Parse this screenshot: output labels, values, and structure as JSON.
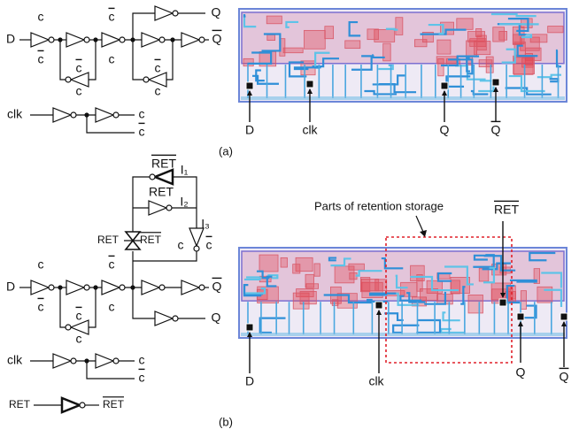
{
  "figure_a": {
    "schematic_labels": [
      {
        "text": "D"
      },
      {
        "text": "c"
      },
      {
        "text": "c",
        "overline": true
      },
      {
        "text": "c",
        "overline": true
      },
      {
        "text": "c"
      },
      {
        "text": "c",
        "overline": true
      },
      {
        "text": "c"
      },
      {
        "text": "c",
        "overline": true
      },
      {
        "text": "c"
      },
      {
        "text": "Q"
      },
      {
        "text": "Q",
        "overline": true
      },
      {
        "text": "clk"
      },
      {
        "text": "c"
      },
      {
        "text": "c",
        "overline": true
      }
    ],
    "layout_labels": [
      {
        "text": "D"
      },
      {
        "text": "clk"
      },
      {
        "text": "Q"
      },
      {
        "text": "Q",
        "overline": true
      }
    ],
    "caption": "(a)"
  },
  "figure_b": {
    "schematic_labels": [
      {
        "text": "RET",
        "overline": true
      },
      {
        "text": "I₁"
      },
      {
        "text": "RET"
      },
      {
        "text": "I₂"
      },
      {
        "text": "RET"
      },
      {
        "text": "RET",
        "overline": true
      },
      {
        "text": "I₃"
      },
      {
        "text": "c"
      },
      {
        "text": "c",
        "overline": true
      },
      {
        "text": "D"
      },
      {
        "text": "c"
      },
      {
        "text": "c",
        "overline": true
      },
      {
        "text": "c",
        "overline": true
      },
      {
        "text": "c"
      },
      {
        "text": "c",
        "overline": true
      },
      {
        "text": "c"
      },
      {
        "text": "Q",
        "overline": true
      },
      {
        "text": "Q"
      },
      {
        "text": "clk"
      },
      {
        "text": "c"
      },
      {
        "text": "c",
        "overline": true
      },
      {
        "text": "RET"
      },
      {
        "text": "RET",
        "overline": true
      }
    ],
    "callout": "Parts of retention storage",
    "layout_labels": [
      {
        "text": "RET",
        "overline": true
      },
      {
        "text": "D"
      },
      {
        "text": "clk"
      },
      {
        "text": "Q"
      },
      {
        "text": "Q",
        "overline": true
      }
    ],
    "caption": "(b)"
  }
}
